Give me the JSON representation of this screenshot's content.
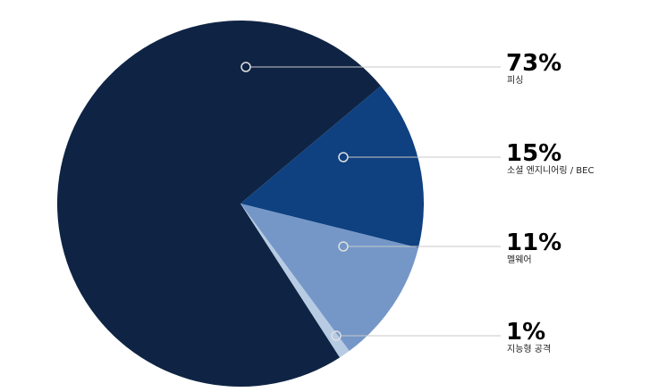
{
  "chart_data": {
    "type": "pie",
    "categories": [
      "피싱",
      "소셜 엔지니어링 / BEC",
      "멜웨어",
      "지능형 공격"
    ],
    "values": [
      73,
      15,
      11,
      1
    ],
    "value_labels": [
      "73%",
      "15%",
      "11%",
      "1%"
    ],
    "colors": [
      "#0f2444",
      "#0f4180",
      "#7597c8",
      "#b7cbe3"
    ]
  }
}
